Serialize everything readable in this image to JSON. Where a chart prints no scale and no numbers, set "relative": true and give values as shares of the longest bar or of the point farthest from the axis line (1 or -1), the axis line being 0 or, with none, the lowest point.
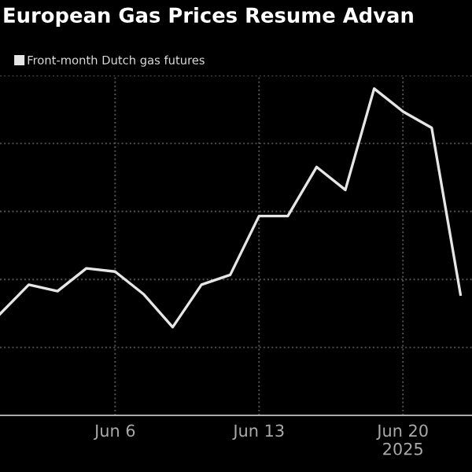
{
  "chart_data": {
    "type": "line",
    "title": "European Gas Prices Resume Advan",
    "relative": true,
    "categories": [
      null,
      null,
      null,
      null,
      "Jun 6",
      null,
      null,
      null,
      null,
      "Jun 13",
      null,
      null,
      null,
      null,
      "Jun 20\n2025",
      null,
      null
    ],
    "series": [
      {
        "name": "Front-month Dutch gas futures",
        "color": "#e6e6e6",
        "values": [
          0.31,
          0.4,
          0.38,
          0.45,
          0.44,
          0.37,
          0.27,
          0.4,
          0.43,
          0.61,
          0.61,
          0.76,
          0.69,
          1,
          0.93,
          0.88,
          0.37
        ]
      }
    ],
    "grid": true,
    "legend": "top left",
    "marker": "none",
    "line_style": "solid"
  }
}
